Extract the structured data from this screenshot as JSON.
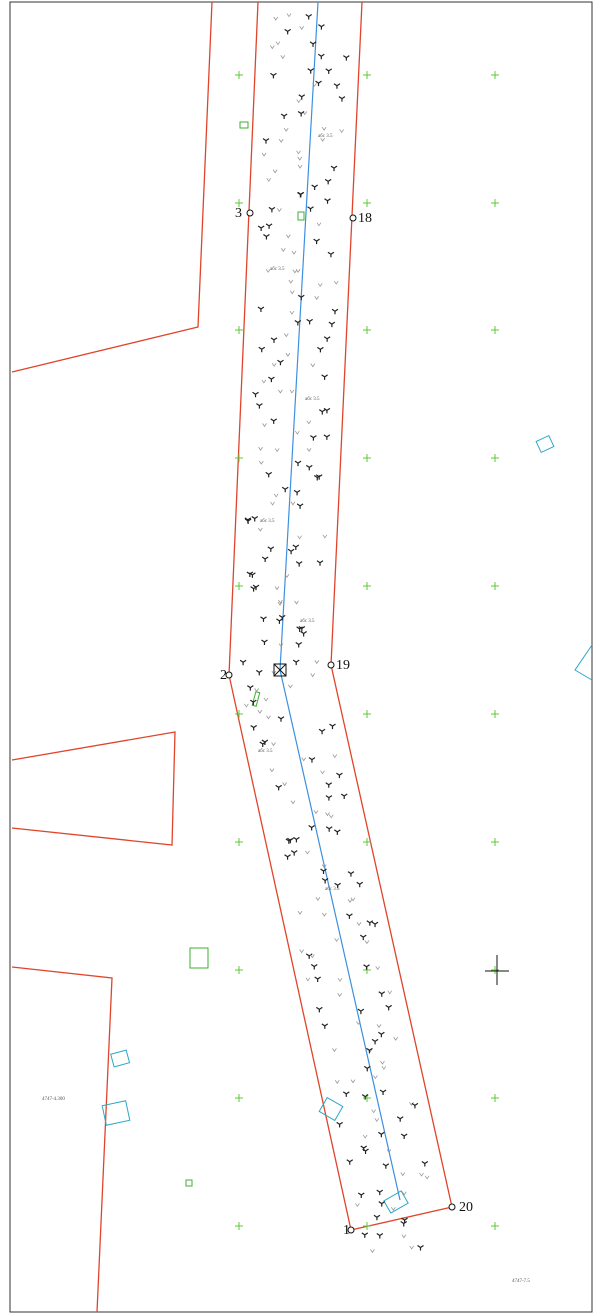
{
  "points": [
    {
      "label": "3"
    },
    {
      "label": "18"
    },
    {
      "label": "2"
    },
    {
      "label": "19"
    },
    {
      "label": "1"
    },
    {
      "label": "20"
    }
  ],
  "annotations": [
    {
      "label": "абс 3.5"
    },
    {
      "label": "абс 3.5"
    },
    {
      "label": "абс 3.5"
    },
    {
      "label": "абс 3.5"
    },
    {
      "label": "абс 3.5"
    },
    {
      "label": "абс 3.5"
    },
    {
      "label": "абс 3.5"
    },
    {
      "label": "4747-4.300"
    },
    {
      "label": "4747-7.5"
    }
  ]
}
